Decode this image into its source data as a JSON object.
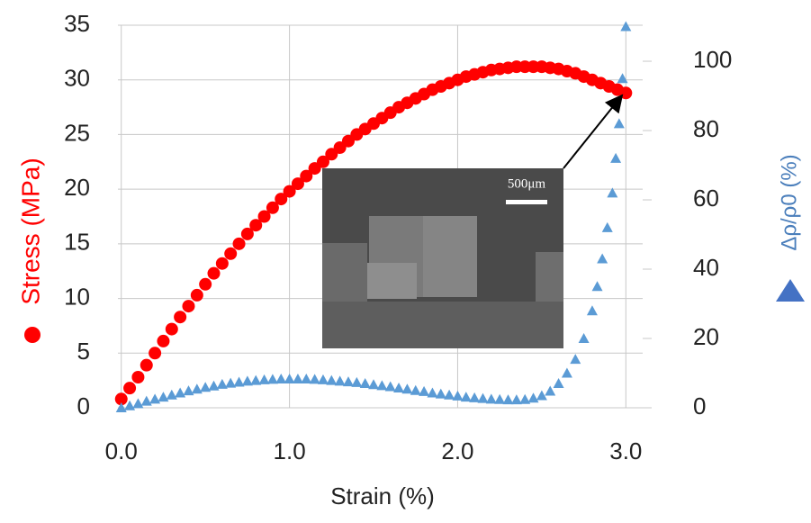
{
  "chart_data": {
    "type": "scatter",
    "xlabel": "Strain (%)",
    "ylabel": "Stress (MPa)",
    "y2label": "Δρ/ρ0 (%)",
    "inset_label": "500μm",
    "xlim": [
      -0.02,
      3.1
    ],
    "xticks": [
      {
        "value": 0,
        "label": "0.0"
      },
      {
        "value": 1,
        "label": "1.0"
      },
      {
        "value": 2,
        "label": "2.0"
      },
      {
        "value": 3,
        "label": "3.0"
      }
    ],
    "ylim": [
      0,
      35
    ],
    "yticks": [
      0,
      5,
      10,
      15,
      20,
      25,
      30,
      35
    ],
    "y2lim": [
      0,
      110.4
    ],
    "y2ticks": [
      0,
      20,
      40,
      60,
      80,
      100
    ],
    "grid": true,
    "series": [
      {
        "color": "#ff0000",
        "marker": "circle",
        "axis": "y",
        "x": [
          0,
          0.05,
          0.1,
          0.15,
          0.2,
          0.25,
          0.3,
          0.35,
          0.4,
          0.45,
          0.5,
          0.55,
          0.6,
          0.65,
          0.7,
          0.75,
          0.8,
          0.85,
          0.9,
          0.95,
          1.0,
          1.05,
          1.1,
          1.15,
          1.2,
          1.25,
          1.3,
          1.35,
          1.4,
          1.45,
          1.5,
          1.55,
          1.6,
          1.65,
          1.7,
          1.75,
          1.8,
          1.85,
          1.9,
          1.95,
          2.0,
          2.05,
          2.1,
          2.15,
          2.2,
          2.25,
          2.3,
          2.35,
          2.4,
          2.45,
          2.5,
          2.55,
          2.6,
          2.65,
          2.7,
          2.75,
          2.8,
          2.85,
          2.9,
          2.95,
          3.0
        ],
        "values": [
          0.8,
          1.8,
          2.8,
          3.9,
          5,
          6.1,
          7.2,
          8.3,
          9.3,
          10.3,
          11.3,
          12.3,
          13.2,
          14.1,
          15,
          15.9,
          16.7,
          17.5,
          18.3,
          19.1,
          19.8,
          20.5,
          21.2,
          21.9,
          22.5,
          23.2,
          23.8,
          24.4,
          25,
          25.5,
          26,
          26.5,
          27,
          27.5,
          27.9,
          28.3,
          28.7,
          29.1,
          29.4,
          29.7,
          30,
          30.3,
          30.5,
          30.7,
          30.9,
          31,
          31.1,
          31.2,
          31.2,
          31.2,
          31.2,
          31.1,
          31,
          30.8,
          30.6,
          30.3,
          30,
          29.7,
          29.4,
          29.1,
          28.8
        ]
      },
      {
        "color": "#5b9bd5",
        "marker": "triangle",
        "axis": "y2",
        "x": [
          0,
          0.05,
          0.1,
          0.15,
          0.2,
          0.25,
          0.3,
          0.35,
          0.4,
          0.45,
          0.5,
          0.55,
          0.6,
          0.65,
          0.7,
          0.75,
          0.8,
          0.85,
          0.9,
          0.95,
          1.0,
          1.05,
          1.1,
          1.15,
          1.2,
          1.25,
          1.3,
          1.35,
          1.4,
          1.45,
          1.5,
          1.55,
          1.6,
          1.65,
          1.7,
          1.75,
          1.8,
          1.85,
          1.9,
          1.95,
          2.0,
          2.05,
          2.1,
          2.15,
          2.2,
          2.25,
          2.3,
          2.35,
          2.4,
          2.45,
          2.5,
          2.55,
          2.6,
          2.65,
          2.7,
          2.75,
          2.8,
          2.83,
          2.86,
          2.89,
          2.92,
          2.94,
          2.96,
          2.98,
          3.0
        ],
        "values": [
          0,
          0.6,
          1.2,
          1.9,
          2.5,
          3.1,
          3.7,
          4.3,
          4.9,
          5.4,
          5.9,
          6.3,
          6.8,
          7.1,
          7.4,
          7.7,
          7.9,
          8.1,
          8.2,
          8.3,
          8.3,
          8.3,
          8.3,
          8.2,
          8.1,
          7.9,
          7.7,
          7.5,
          7.3,
          7,
          6.7,
          6.4,
          6.1,
          5.7,
          5.4,
          5,
          4.7,
          4.3,
          4,
          3.7,
          3.4,
          3.1,
          2.9,
          2.7,
          2.5,
          2.4,
          2.3,
          2.3,
          2.4,
          2.8,
          3.5,
          4.8,
          7,
          10,
          14,
          20,
          28,
          35,
          43,
          52,
          62,
          72,
          82,
          95,
          110
        ]
      }
    ]
  }
}
